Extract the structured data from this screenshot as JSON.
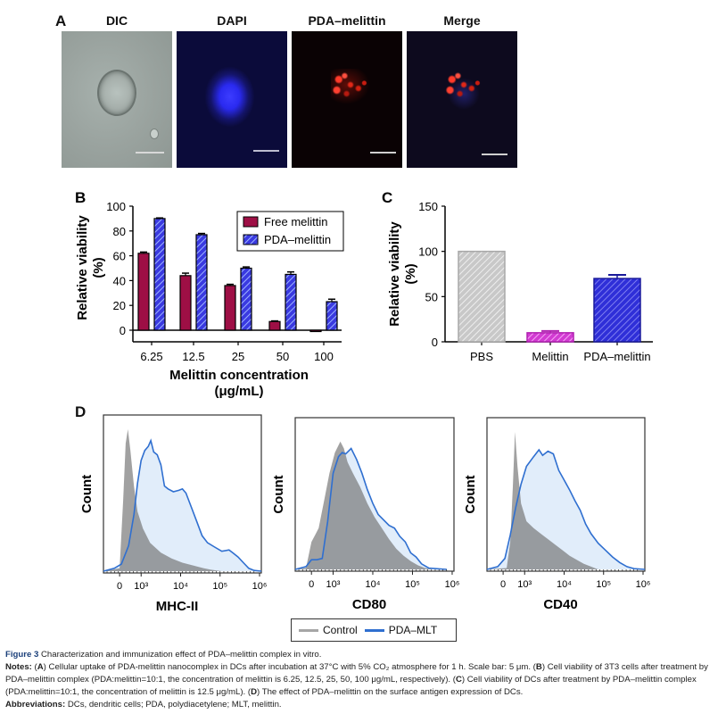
{
  "figure": {
    "panel_labels": {
      "a": "A",
      "b": "B",
      "c": "C",
      "d": "D"
    },
    "panel_a": {
      "images": [
        {
          "title": "DIC",
          "kind": "brightfield"
        },
        {
          "title": "DAPI",
          "kind": "blue-fluorescence"
        },
        {
          "title": "PDA–melittin",
          "kind": "red-fluorescence"
        },
        {
          "title": "Merge",
          "kind": "merge"
        }
      ],
      "scale_bar": "5 μm"
    },
    "colors": {
      "free_melittin": "#9e0f45",
      "pda_melittin": "#3a3ae0",
      "pbs": "#bdbdbd",
      "melittin_c": "#d23cd2",
      "pda_melittin_c": "#2f2fd8",
      "control_hist": "#8a8a8a",
      "pda_mlt_hist": "#2f6fd0"
    },
    "legend_d": [
      {
        "label": "Control",
        "color": "#a6a6a6"
      },
      {
        "label": "PDA–MLT",
        "color": "#2f6fd0"
      }
    ],
    "caption": {
      "figure_label": "Figure 3",
      "title": "Characterization and immunization effect of PDA–melittin complex in vitro.",
      "notes_label": "Notes:",
      "notes_a": "Cellular uptake of PDA-melittin nanocomplex in DCs after incubation at 37°C with 5% CO₂ atmosphere for 1 h. Scale bar: 5 μm.",
      "notes_b": "Cell viability of 3T3 cells after treatment by PDA–melittin complex (PDA:melittin=10:1, the concentration of melittin is 6.25, 12.5, 25, 50, 100 μg/mL, respectively).",
      "notes_c": "Cell viability of DCs after treatment by PDA–melittin complex (PDA:melittin=10:1, the concentration of melittin is 12.5 μg/mL).",
      "notes_d": "The effect of PDA–melittin on the surface antigen expression of DCs.",
      "abbrev_label": "Abbreviations:",
      "abbrev_text": "DCs, dendritic cells; PDA, polydiacetylene; MLT, melittin."
    }
  },
  "chart_data": [
    {
      "id": "B",
      "type": "bar",
      "title": "",
      "xlabel": "Melittin concentration (μg/mL)",
      "ylabel": "Relative viability (%)",
      "categories": [
        "6.25",
        "12.5",
        "25",
        "50",
        "100"
      ],
      "ylim": [
        -10,
        100
      ],
      "yticks": [
        0,
        20,
        40,
        60,
        80,
        100
      ],
      "legend_position": "top-right",
      "series": [
        {
          "name": "Free melittin",
          "values": [
            62,
            44,
            36,
            7,
            -1
          ],
          "errors": [
            1,
            2,
            1,
            0.5,
            0.5
          ],
          "pattern": "solid"
        },
        {
          "name": "PDA–melittin",
          "values": [
            90,
            77,
            50,
            45,
            23
          ],
          "errors": [
            0.5,
            1,
            1,
            2,
            2
          ],
          "pattern": "hatched"
        }
      ]
    },
    {
      "id": "C",
      "type": "bar",
      "title": "",
      "xlabel": "",
      "ylabel": "Relative viability (%)",
      "categories": [
        "PBS",
        "Melittin",
        "PDA–melittin"
      ],
      "ylim": [
        0,
        150
      ],
      "yticks": [
        0,
        50,
        100,
        150
      ],
      "values": [
        100,
        10,
        70
      ],
      "errors": [
        0,
        2,
        4
      ]
    },
    {
      "id": "D",
      "type": "area",
      "ylabel": "Count",
      "xticks": [
        "0",
        "10³",
        "10⁴",
        "10⁵",
        "10⁶"
      ],
      "legend": [
        "Control",
        "PDA–MLT"
      ],
      "legend_position": "bottom-center",
      "plots": [
        {
          "xlabel": "MHC-II",
          "control": [
            [
              0,
              0
            ],
            [
              0.45,
              0.02
            ],
            [
              0.55,
              0.5
            ],
            [
              0.62,
              0.9
            ],
            [
              0.68,
              1.0
            ],
            [
              0.75,
              0.85
            ],
            [
              0.85,
              0.6
            ],
            [
              0.95,
              0.42
            ],
            [
              1.1,
              0.3
            ],
            [
              1.3,
              0.2
            ],
            [
              1.6,
              0.13
            ],
            [
              1.9,
              0.09
            ],
            [
              2.2,
              0.06
            ],
            [
              2.5,
              0.04
            ],
            [
              2.8,
              0.02
            ],
            [
              3.0,
              0.01
            ],
            [
              3.3,
              0
            ]
          ],
          "pda_mlt": [
            [
              0,
              0
            ],
            [
              0.3,
              0.02
            ],
            [
              0.5,
              0.05
            ],
            [
              0.7,
              0.18
            ],
            [
              0.85,
              0.4
            ],
            [
              0.95,
              0.62
            ],
            [
              1.05,
              0.78
            ],
            [
              1.15,
              0.85
            ],
            [
              1.25,
              0.88
            ],
            [
              1.32,
              0.92
            ],
            [
              1.4,
              0.84
            ],
            [
              1.5,
              0.82
            ],
            [
              1.6,
              0.75
            ],
            [
              1.7,
              0.6
            ],
            [
              1.8,
              0.58
            ],
            [
              1.95,
              0.56
            ],
            [
              2.1,
              0.57
            ],
            [
              2.2,
              0.58
            ],
            [
              2.3,
              0.55
            ],
            [
              2.45,
              0.45
            ],
            [
              2.6,
              0.35
            ],
            [
              2.75,
              0.25
            ],
            [
              2.9,
              0.2
            ],
            [
              3.1,
              0.17
            ],
            [
              3.3,
              0.14
            ],
            [
              3.5,
              0.15
            ],
            [
              3.6,
              0.13
            ],
            [
              3.75,
              0.1
            ],
            [
              3.9,
              0.06
            ],
            [
              4.05,
              0.02
            ],
            [
              4.2,
              0.005
            ],
            [
              4.4,
              0
            ]
          ]
        },
        {
          "xlabel": "CD80",
          "control": [
            [
              0,
              0
            ],
            [
              0.3,
              0.01
            ],
            [
              0.45,
              0.2
            ],
            [
              0.55,
              0.25
            ],
            [
              0.65,
              0.3
            ],
            [
              0.8,
              0.5
            ],
            [
              0.95,
              0.7
            ],
            [
              1.1,
              0.85
            ],
            [
              1.25,
              0.93
            ],
            [
              1.35,
              0.88
            ],
            [
              1.45,
              0.78
            ],
            [
              1.6,
              0.7
            ],
            [
              1.8,
              0.6
            ],
            [
              2.0,
              0.48
            ],
            [
              2.2,
              0.38
            ],
            [
              2.4,
              0.3
            ],
            [
              2.6,
              0.22
            ],
            [
              2.8,
              0.15
            ],
            [
              3.0,
              0.1
            ],
            [
              3.2,
              0.06
            ],
            [
              3.4,
              0.03
            ],
            [
              3.6,
              0.01
            ],
            [
              3.8,
              0
            ]
          ],
          "pda_mlt": [
            [
              0,
              0
            ],
            [
              0.3,
              0.02
            ],
            [
              0.45,
              0.07
            ],
            [
              0.6,
              0.07
            ],
            [
              0.75,
              0.08
            ],
            [
              0.9,
              0.35
            ],
            [
              1.05,
              0.7
            ],
            [
              1.2,
              0.82
            ],
            [
              1.3,
              0.85
            ],
            [
              1.4,
              0.84
            ],
            [
              1.55,
              0.88
            ],
            [
              1.7,
              0.8
            ],
            [
              1.85,
              0.7
            ],
            [
              2.0,
              0.58
            ],
            [
              2.15,
              0.48
            ],
            [
              2.3,
              0.4
            ],
            [
              2.45,
              0.36
            ],
            [
              2.6,
              0.32
            ],
            [
              2.75,
              0.3
            ],
            [
              2.9,
              0.24
            ],
            [
              3.05,
              0.2
            ],
            [
              3.2,
              0.12
            ],
            [
              3.35,
              0.09
            ],
            [
              3.5,
              0.04
            ],
            [
              3.7,
              0.01
            ],
            [
              3.9,
              0.005
            ],
            [
              4.2,
              0
            ]
          ]
        },
        {
          "xlabel": "CD40",
          "control": [
            [
              0,
              0
            ],
            [
              0.55,
              0.01
            ],
            [
              0.65,
              0.2
            ],
            [
              0.72,
              0.6
            ],
            [
              0.78,
              1.0
            ],
            [
              0.85,
              0.75
            ],
            [
              0.95,
              0.48
            ],
            [
              1.1,
              0.35
            ],
            [
              1.3,
              0.3
            ],
            [
              1.5,
              0.26
            ],
            [
              1.7,
              0.22
            ],
            [
              1.9,
              0.18
            ],
            [
              2.1,
              0.14
            ],
            [
              2.3,
              0.1
            ],
            [
              2.5,
              0.07
            ],
            [
              2.7,
              0.04
            ],
            [
              2.9,
              0.02
            ],
            [
              3.1,
              0
            ]
          ],
          "pda_mlt": [
            [
              0,
              0
            ],
            [
              0.3,
              0.02
            ],
            [
              0.5,
              0.08
            ],
            [
              0.65,
              0.25
            ],
            [
              0.8,
              0.45
            ],
            [
              0.95,
              0.62
            ],
            [
              1.1,
              0.75
            ],
            [
              1.3,
              0.82
            ],
            [
              1.45,
              0.87
            ],
            [
              1.55,
              0.83
            ],
            [
              1.7,
              0.86
            ],
            [
              1.85,
              0.84
            ],
            [
              2.0,
              0.72
            ],
            [
              2.15,
              0.65
            ],
            [
              2.3,
              0.58
            ],
            [
              2.45,
              0.5
            ],
            [
              2.6,
              0.43
            ],
            [
              2.75,
              0.33
            ],
            [
              2.9,
              0.26
            ],
            [
              3.1,
              0.19
            ],
            [
              3.3,
              0.14
            ],
            [
              3.5,
              0.09
            ],
            [
              3.7,
              0.05
            ],
            [
              3.9,
              0.02
            ],
            [
              4.1,
              0.005
            ],
            [
              4.4,
              0
            ]
          ]
        }
      ]
    }
  ]
}
